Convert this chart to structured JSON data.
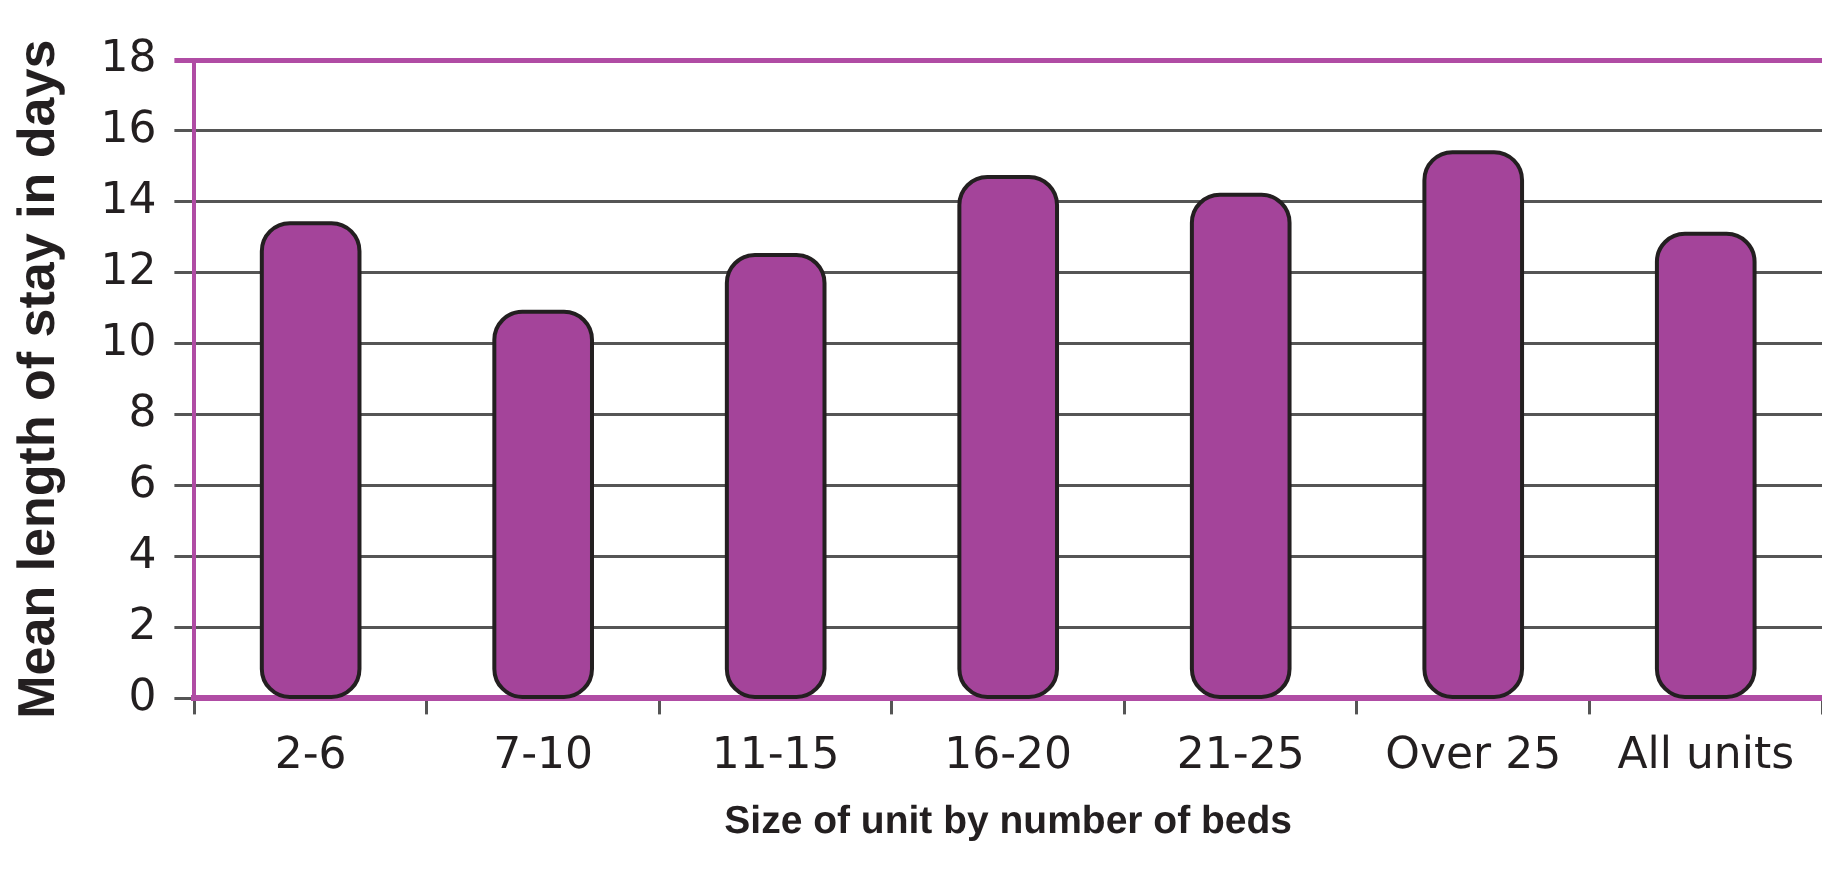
{
  "chart_data": {
    "type": "bar",
    "xlabel": "Size of unit by number of beds",
    "ylabel": "Mean length of stay in days",
    "categories": [
      "2-6",
      "7-10",
      "11-15",
      "16-20",
      "21-25",
      "Over 25",
      "All units"
    ],
    "values": [
      13.4,
      10.9,
      12.5,
      14.7,
      14.2,
      15.4,
      13.1
    ],
    "color": "#a4449a",
    "ylim": [
      0,
      18
    ],
    "yticks": [
      0,
      2,
      4,
      6,
      8,
      10,
      12,
      14,
      16,
      18
    ],
    "grid": "y"
  }
}
